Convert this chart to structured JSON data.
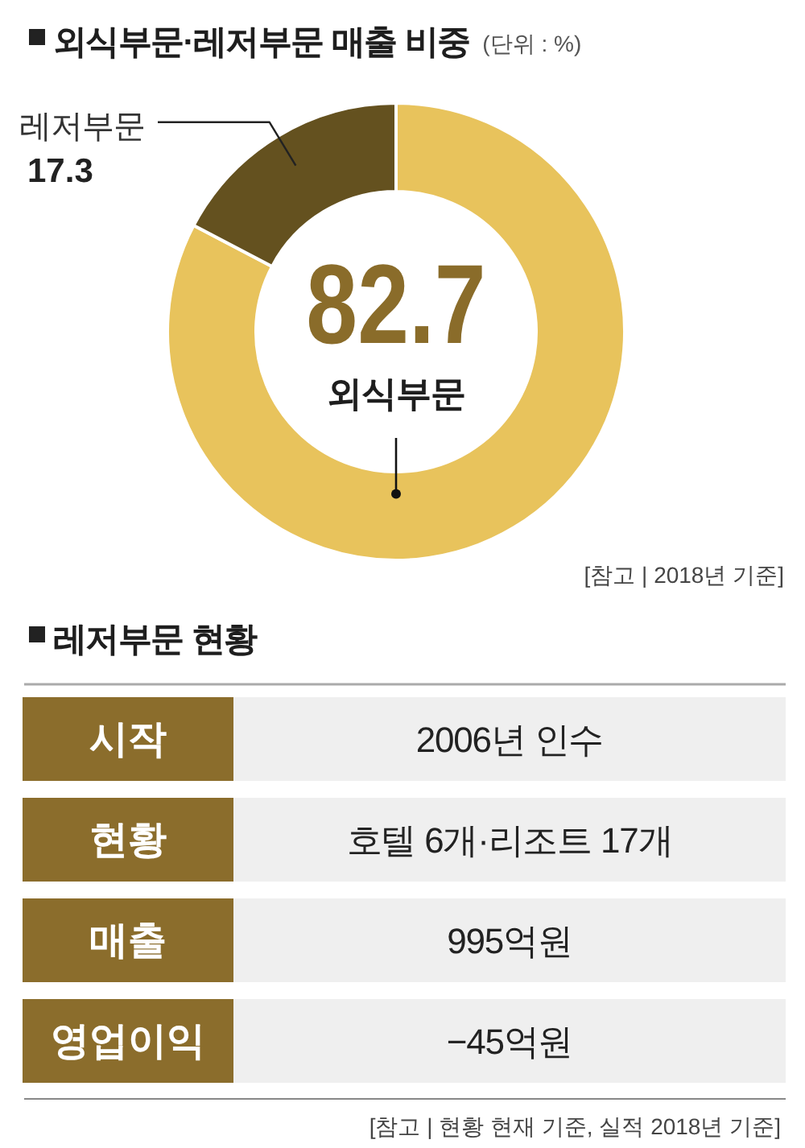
{
  "chart_data": [
    {
      "type": "donut",
      "title": "외식부문·레저부문 매출 비중",
      "subtitle": "(단위 : %)",
      "categories": [
        "외식부문",
        "레저부문"
      ],
      "values": [
        82.7,
        17.3
      ],
      "colors": [
        "#e8c35c",
        "#64511f"
      ],
      "data_labels": true,
      "annotations": [
        "[참고 | 2018년 기준]"
      ]
    },
    {
      "type": "other",
      "title": "레저부문 현황",
      "categories": [
        "시작",
        "현황",
        "매출",
        "영업이익"
      ],
      "annotations": [
        "2006년 인수",
        "호텔 6개·리조트 17개",
        "995억원",
        "−45억원",
        "[참고 | 현황 현재 기준, 실적 2018년 기준]"
      ]
    }
  ]
}
